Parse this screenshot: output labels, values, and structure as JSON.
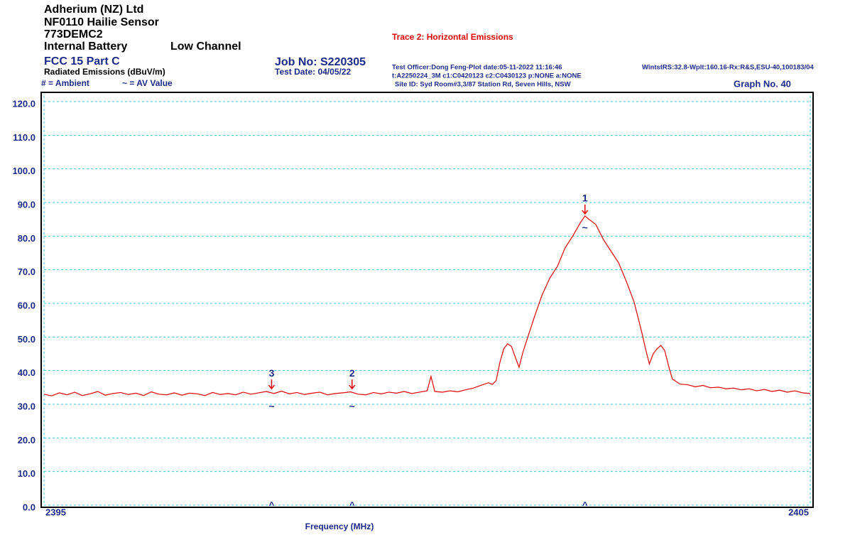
{
  "chart_data": {
    "type": "line",
    "header": {
      "company": "Adherium (NZ) Ltd",
      "product": "NF0110 Hailie Sensor",
      "model": "773DEMC2",
      "power": "Internal Battery",
      "channel": "Low Channel",
      "standard": "FCC 15 Part C",
      "measurement": "Radiated Emissions (dBuV/m)",
      "legend_ambient": "# = Ambient",
      "legend_av": "~ = AV Value",
      "job": "Job No: S220305",
      "test_date": "Test Date: 04/05/22",
      "officer": "Test Officer:Dong Feng-Plot date:05-11-2022 11:16:46",
      "software": "WintstRS:32.8-Wplt:160.16-Rx:R&S,ESU-40,100183/04",
      "transducers": "t:A2250224_3M c1:C0420123  c2:C0430123 p:NONE a:NONE",
      "site": "Site ID:  Syd Room#3,3/87 Station Rd, Seven Hills, NSW",
      "graph_no": "Graph No. 40"
    },
    "x_label": "Frequency (MHz)",
    "x": [
      2395.0,
      2395.1,
      2395.2,
      2395.3,
      2395.4,
      2395.5,
      2395.6,
      2395.7,
      2395.8,
      2395.9,
      2396.0,
      2396.1,
      2396.2,
      2396.3,
      2396.4,
      2396.5,
      2396.6,
      2396.7,
      2396.8,
      2396.9,
      2397.0,
      2397.1,
      2397.2,
      2397.3,
      2397.4,
      2397.5,
      2397.6,
      2397.7,
      2397.8,
      2397.9,
      2398.0,
      2398.1,
      2398.2,
      2398.3,
      2398.4,
      2398.5,
      2398.6,
      2398.7,
      2398.8,
      2398.9,
      2399.0,
      2399.1,
      2399.2,
      2399.3,
      2399.4,
      2399.5,
      2399.6,
      2399.7,
      2399.8,
      2399.9,
      2400.0,
      2400.05,
      2400.1,
      2400.2,
      2400.3,
      2400.4,
      2400.5,
      2400.6,
      2400.7,
      2400.8,
      2400.85,
      2400.9,
      2400.95,
      2401.0,
      2401.05,
      2401.1,
      2401.15,
      2401.2,
      2401.25,
      2401.3,
      2401.4,
      2401.5,
      2401.6,
      2401.7,
      2401.8,
      2401.9,
      2402.0,
      2402.06,
      2402.1,
      2402.2,
      2402.3,
      2402.4,
      2402.5,
      2402.6,
      2402.7,
      2402.8,
      2402.85,
      2402.9,
      2402.95,
      2403.0,
      2403.05,
      2403.1,
      2403.15,
      2403.2,
      2403.3,
      2403.4,
      2403.5,
      2403.6,
      2403.7,
      2403.8,
      2403.9,
      2404.0,
      2404.1,
      2404.2,
      2404.3,
      2404.4,
      2404.5,
      2404.6,
      2404.7,
      2404.8,
      2404.9,
      2405.0
    ],
    "series": [
      {
        "name": "Trace 2: Horizontal Emissions",
        "color": "#e00000",
        "values": [
          33,
          32.5,
          33.4,
          32.8,
          33.6,
          32.6,
          33.1,
          33.8,
          32.7,
          33.2,
          33.5,
          32.9,
          33.3,
          32.6,
          33.7,
          33.0,
          32.8,
          33.4,
          32.7,
          33.3,
          33.1,
          32.6,
          33.5,
          32.9,
          33.2,
          32.8,
          33.6,
          33.0,
          33.4,
          33.8,
          33.2,
          33.9,
          33.1,
          33.5,
          32.9,
          33.3,
          33.6,
          32.8,
          33.2,
          33.4,
          33.7,
          33.0,
          32.8,
          33.5,
          33.1,
          33.6,
          33.3,
          33.8,
          33.2,
          33.6,
          34.0,
          38.3,
          33.8,
          33.6,
          34.0,
          33.7,
          34.3,
          34.8,
          35.6,
          36.4,
          35.9,
          37.0,
          42.5,
          46.5,
          48.0,
          47.2,
          44.0,
          41.0,
          45.5,
          49.0,
          56.0,
          62.5,
          67.5,
          71.0,
          76.5,
          80.0,
          84.0,
          86.0,
          85.2,
          83.5,
          79.0,
          75.5,
          72.0,
          66.5,
          60.5,
          51.5,
          46.5,
          42.0,
          45.0,
          46.5,
          47.5,
          46.0,
          41.5,
          37.5,
          36.0,
          35.8,
          35.2,
          35.6,
          34.9,
          35.1,
          34.6,
          34.8,
          34.3,
          34.6,
          34.0,
          34.4,
          33.8,
          34.2,
          33.6,
          34.0,
          33.4,
          33.2
        ]
      }
    ],
    "markers": [
      {
        "label": "1",
        "x": 2402.06,
        "value": 86,
        "av_value": 83
      },
      {
        "label": "2",
        "x": 2399.02,
        "value": 34,
        "av_value": 29.8
      },
      {
        "label": "3",
        "x": 2397.97,
        "value": 34,
        "av_value": 29.8
      }
    ],
    "av_symbol": "~",
    "limit_symbol": "^",
    "xlim": [
      2395,
      2405
    ],
    "xticks": [
      2395,
      2405
    ],
    "ylim": [
      0,
      120
    ],
    "yticks": [
      {
        "value": 0,
        "label": "0.0"
      },
      {
        "value": 10,
        "label": "10.0"
      },
      {
        "value": 20,
        "label": "20.0"
      },
      {
        "value": 30,
        "label": "30.0"
      },
      {
        "value": 40,
        "label": "40.0"
      },
      {
        "value": 50,
        "label": "50.0"
      },
      {
        "value": 60,
        "label": "60.0"
      },
      {
        "value": 70,
        "label": "70.0"
      },
      {
        "value": 80,
        "label": "80.0"
      },
      {
        "value": 90,
        "label": "90.0"
      },
      {
        "value": 100,
        "label": "100.0"
      },
      {
        "value": 110,
        "label": "110.0"
      },
      {
        "value": 120,
        "label": "120.0"
      }
    ],
    "grid": true
  }
}
